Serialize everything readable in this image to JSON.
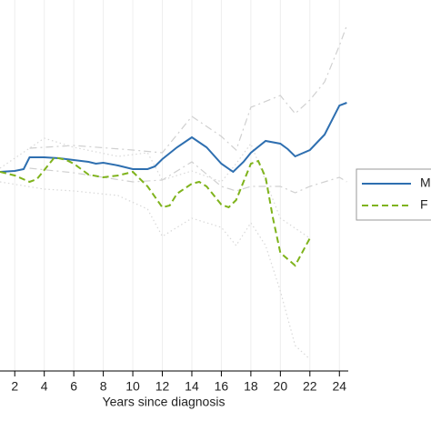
{
  "chart_data": {
    "type": "line",
    "x_label": "Years since diagnosis",
    "xlim": [
      1,
      24.6
    ],
    "xticks": [
      2,
      4,
      6,
      8,
      10,
      12,
      14,
      16,
      18,
      20,
      22,
      24
    ],
    "ylim": [
      0,
      408
    ],
    "grid": true,
    "series": [
      {
        "name": "M",
        "color": "#2e6fb0",
        "dash": "solid",
        "x": [
          1,
          2,
          2.6,
          3,
          4,
          5,
          6,
          7,
          7.5,
          8,
          9,
          10,
          11,
          11.5,
          12,
          13,
          14,
          15,
          16,
          16.8,
          17.5,
          18,
          19,
          20,
          20.5,
          21,
          22,
          23,
          24,
          24.5
        ],
        "values": [
          219,
          220,
          222,
          235,
          235,
          234,
          232,
          230,
          228,
          229,
          226,
          222,
          222,
          225,
          233,
          246,
          257,
          246,
          228,
          219,
          230,
          240,
          253,
          250,
          244,
          236,
          243,
          260,
          292,
          295
        ]
      },
      {
        "name": "F",
        "color": "#7fb31c",
        "dash": "dashed",
        "x": [
          1,
          2,
          3,
          3.5,
          4,
          4.7,
          5.5,
          6,
          7,
          8,
          9,
          10,
          11,
          12,
          12.5,
          13,
          14,
          14.5,
          15,
          16,
          16.5,
          17,
          17.5,
          18,
          18.5,
          19,
          19.5,
          20,
          21,
          22
        ],
        "values": [
          219,
          215,
          208,
          211,
          221,
          235,
          232,
          228,
          216,
          213,
          215,
          219,
          203,
          180,
          182,
          195,
          206,
          208,
          203,
          183,
          180,
          188,
          208,
          228,
          231,
          213,
          168,
          130,
          116,
          146
        ]
      }
    ],
    "bands": [
      {
        "color": "#d0d0d0",
        "dash": "dashdot",
        "x": [
          3,
          6,
          10,
          12,
          14,
          16,
          17,
          18,
          20,
          21,
          22,
          23,
          24,
          24.5
        ],
        "values": [
          245,
          248,
          243,
          240,
          280,
          258,
          243,
          290,
          303,
          283,
          298,
          318,
          358,
          380
        ]
      },
      {
        "color": "#d0d0d0",
        "dash": "dashdot",
        "x": [
          3,
          6,
          10,
          12,
          14,
          16,
          17,
          18,
          20,
          21,
          22,
          24,
          24.5
        ],
        "values": [
          223,
          218,
          208,
          210,
          230,
          203,
          198,
          203,
          203,
          196,
          203,
          213,
          208
        ]
      },
      {
        "color": "#d8d8d8",
        "dash": "dotted",
        "x": [
          1,
          4,
          6,
          9,
          11,
          12,
          14,
          16,
          17,
          18,
          20,
          22
        ],
        "values": [
          223,
          256,
          246,
          236,
          240,
          210,
          220,
          208,
          228,
          250,
          168,
          146
        ]
      },
      {
        "color": "#d8d8d8",
        "dash": "dotted",
        "x": [
          1,
          4,
          6,
          9,
          11,
          12,
          14,
          16,
          17,
          18,
          19,
          20,
          21,
          22
        ],
        "values": [
          208,
          200,
          198,
          193,
          178,
          148,
          168,
          158,
          138,
          163,
          138,
          88,
          28,
          13
        ]
      }
    ]
  }
}
